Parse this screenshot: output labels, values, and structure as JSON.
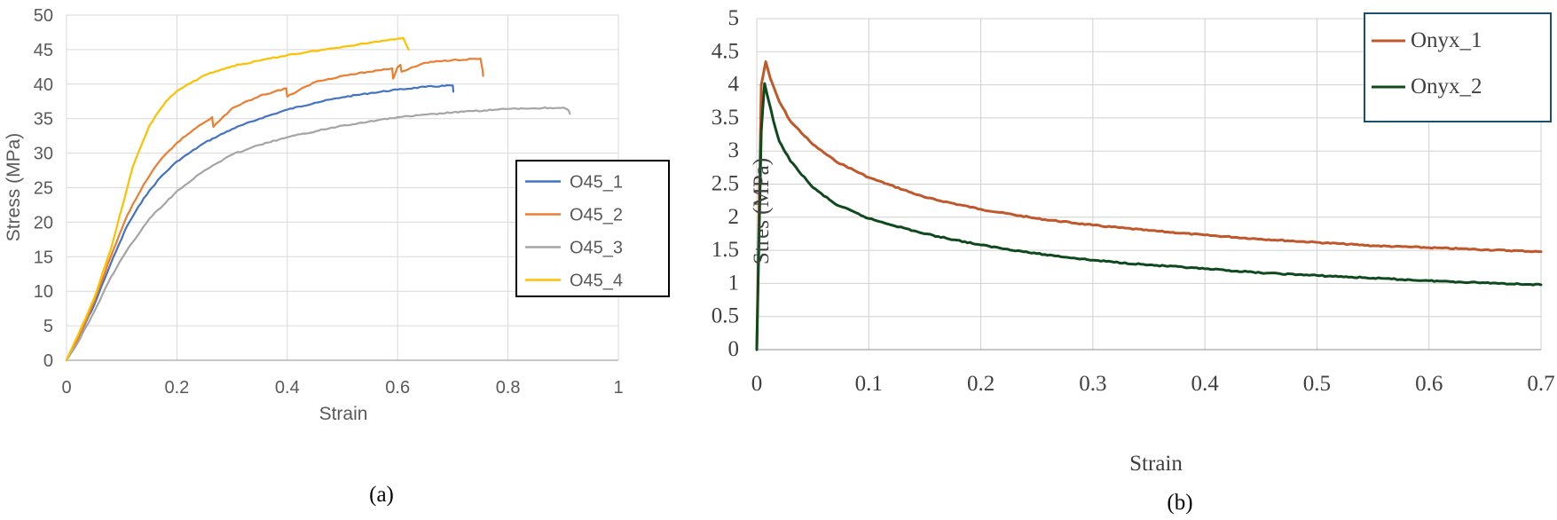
{
  "chart_data": [
    {
      "type": "line",
      "caption": "(a)",
      "xlabel": "Strain",
      "ylabel": "Stress (MPa)",
      "xlim": [
        0,
        1
      ],
      "ylim": [
        0,
        50
      ],
      "xticks": [
        0,
        0.2,
        0.4,
        0.6,
        0.8,
        1
      ],
      "xtick_labels": [
        "0",
        "0.2",
        "0.4",
        "0.6",
        "0.8",
        "1"
      ],
      "yticks": [
        0,
        5,
        10,
        15,
        20,
        25,
        30,
        35,
        40,
        45,
        50
      ],
      "ytick_labels": [
        "0",
        "5",
        "10",
        "15",
        "20",
        "25",
        "30",
        "35",
        "40",
        "45",
        "50"
      ],
      "grid": true,
      "legend_position": "right",
      "series": [
        {
          "name": "O45_1",
          "color": "#4472C4",
          "x": [
            0,
            0.02,
            0.05,
            0.08,
            0.11,
            0.14,
            0.17,
            0.2,
            0.25,
            0.3,
            0.35,
            0.4,
            0.45,
            0.5,
            0.55,
            0.6,
            0.65,
            0.7,
            0.701
          ],
          "y": [
            0,
            3,
            8,
            14,
            19.5,
            23.5,
            26.5,
            28.8,
            31.5,
            33.5,
            35,
            36.3,
            37.3,
            38.1,
            38.7,
            39.2,
            39.6,
            39.8,
            38.9
          ]
        },
        {
          "name": "O45_2",
          "color": "#ED7D31",
          "x": [
            0,
            0.02,
            0.05,
            0.08,
            0.11,
            0.14,
            0.17,
            0.2,
            0.24,
            0.264,
            0.266,
            0.3,
            0.35,
            0.398,
            0.4,
            0.45,
            0.5,
            0.55,
            0.59,
            0.592,
            0.6,
            0.605,
            0.607,
            0.65,
            0.7,
            0.75,
            0.754,
            0.755
          ],
          "y": [
            0,
            3,
            8.5,
            15,
            21,
            25.5,
            29,
            31.5,
            34,
            35.2,
            33.8,
            36.5,
            38.3,
            39.4,
            38.2,
            40.3,
            41.2,
            41.8,
            42.3,
            40.8,
            42.5,
            42.8,
            41.8,
            43.1,
            43.5,
            43.7,
            42,
            41.2
          ]
        },
        {
          "name": "O45_3",
          "color": "#A5A5A5",
          "x": [
            0,
            0.02,
            0.05,
            0.08,
            0.11,
            0.15,
            0.2,
            0.25,
            0.3,
            0.35,
            0.4,
            0.5,
            0.6,
            0.7,
            0.8,
            0.9,
            0.91,
            0.912
          ],
          "y": [
            0,
            2.5,
            7,
            12,
            16,
            20.5,
            24.5,
            27.5,
            29.8,
            31.2,
            32.3,
            34,
            35.2,
            35.9,
            36.4,
            36.6,
            36.2,
            35.7
          ]
        },
        {
          "name": "O45_4",
          "color": "#FFC000",
          "x": [
            0,
            0.02,
            0.05,
            0.08,
            0.1,
            0.12,
            0.15,
            0.18,
            0.2,
            0.25,
            0.3,
            0.35,
            0.4,
            0.45,
            0.5,
            0.55,
            0.6,
            0.61,
            0.62
          ],
          "y": [
            0,
            3.5,
            9,
            16,
            22,
            28,
            34,
            37.5,
            39,
            41.3,
            42.6,
            43.4,
            44.2,
            44.8,
            45.4,
            46,
            46.6,
            46.7,
            45
          ]
        }
      ]
    },
    {
      "type": "line",
      "caption": "(b)",
      "xlabel": "Strain",
      "ylabel": "Stres (MPa)",
      "xlim": [
        0,
        0.7
      ],
      "ylim": [
        0,
        5
      ],
      "xticks": [
        0,
        0.1,
        0.2,
        0.3,
        0.4,
        0.5,
        0.6,
        0.7
      ],
      "xtick_labels": [
        "0",
        "0.1",
        "0.2",
        "0.3",
        "0.4",
        "0.5",
        "0.6",
        "0.7"
      ],
      "yticks": [
        0,
        0.5,
        1,
        1.5,
        2,
        2.5,
        3,
        3.5,
        4,
        4.5,
        5
      ],
      "ytick_labels": [
        "0",
        "0.5",
        "1",
        "1.5",
        "2",
        "2.5",
        "3",
        "3.5",
        "4",
        "4.5",
        "5"
      ],
      "grid": true,
      "legend_position": "top-right",
      "series": [
        {
          "name": "Onyx_1",
          "color": "#C0582C",
          "x": [
            0,
            0.004,
            0.008,
            0.012,
            0.02,
            0.03,
            0.05,
            0.07,
            0.1,
            0.15,
            0.2,
            0.25,
            0.3,
            0.35,
            0.4,
            0.45,
            0.5,
            0.55,
            0.6,
            0.65,
            0.7
          ],
          "y": [
            0,
            4.0,
            4.35,
            4.1,
            3.75,
            3.45,
            3.1,
            2.85,
            2.6,
            2.3,
            2.12,
            1.98,
            1.88,
            1.8,
            1.73,
            1.67,
            1.62,
            1.57,
            1.54,
            1.51,
            1.48
          ]
        },
        {
          "name": "Onyx_2",
          "color": "#0E4A1E",
          "x": [
            0,
            0.004,
            0.007,
            0.01,
            0.015,
            0.02,
            0.03,
            0.05,
            0.07,
            0.1,
            0.15,
            0.2,
            0.25,
            0.3,
            0.35,
            0.4,
            0.45,
            0.5,
            0.55,
            0.6,
            0.65,
            0.7
          ],
          "y": [
            0,
            3.3,
            4.02,
            3.8,
            3.45,
            3.15,
            2.85,
            2.45,
            2.2,
            1.98,
            1.75,
            1.58,
            1.45,
            1.35,
            1.28,
            1.22,
            1.16,
            1.12,
            1.08,
            1.04,
            1.01,
            0.98
          ]
        }
      ]
    }
  ]
}
